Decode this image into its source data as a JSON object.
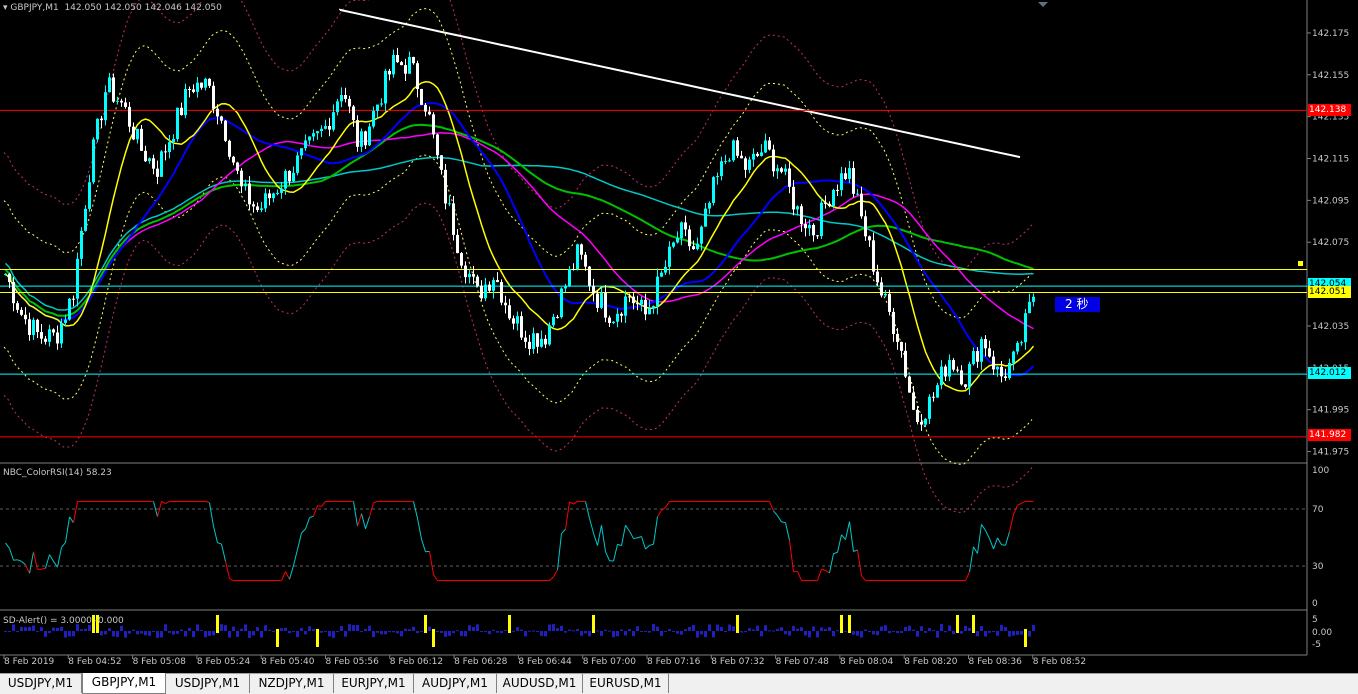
{
  "header": {
    "symbol_label": "GBPJPY,M1",
    "ohlc_text": "142.050 142.050 142.046 142.050",
    "rsi_label": "NBC_ColorRSI(14) 58.23",
    "alert_label": "SD-Alert() = 3.0000 -0.000"
  },
  "timer_label": "2 秒",
  "price_axis": [
    "142.175",
    "142.155",
    "142.135",
    "142.115",
    "142.095",
    "142.075",
    "142.054",
    "142.035",
    "142.015",
    "141.995",
    "141.975"
  ],
  "price_tags": [
    {
      "text": "142.138",
      "bg": "#ff0000",
      "fg": "#ffffff",
      "price": 142.138
    },
    {
      "text": "142.054",
      "bg": "#00ffff",
      "fg": "#000000",
      "price": 142.054
    },
    {
      "text": "142.051",
      "bg": "#ffff00",
      "fg": "#000000",
      "price": 142.051
    },
    {
      "text": "142.012",
      "bg": "#00ffff",
      "fg": "#000000",
      "price": 142.012
    },
    {
      "text": "141.982",
      "bg": "#ff0000",
      "fg": "#ffffff",
      "price": 141.982
    }
  ],
  "rsi_axis": [
    "100",
    "70",
    "30",
    "0"
  ],
  "alert_axis": [
    "5",
    "0.00",
    "-5"
  ],
  "time_axis": [
    "8 Feb 2019",
    "8 Feb 04:52",
    "8 Feb 05:08",
    "8 Feb 05:24",
    "8 Feb 05:40",
    "8 Feb 05:56",
    "8 Feb 06:12",
    "8 Feb 06:28",
    "8 Feb 06:44",
    "8 Feb 07:00",
    "8 Feb 07:16",
    "8 Feb 07:32",
    "8 Feb 07:48",
    "8 Feb 08:04",
    "8 Feb 08:20",
    "8 Feb 08:36",
    "8 Feb 08:52"
  ],
  "tabs": [
    "USDJPY,M1",
    "GBPJPY,M1",
    "USDJPY,M1",
    "NZDJPY,M1",
    "EURJPY,M1",
    "AUDJPY,M1",
    "AUDUSD,M1",
    "EURUSD,M1"
  ],
  "active_tab": 1,
  "colors": {
    "bull": "#00ffff",
    "bear": "#ffffff",
    "background": "#000000",
    "grid": "#404040"
  },
  "chart_data": {
    "type": "candlestick",
    "symbol": "GBPJPY",
    "timeframe": "M1",
    "ylim": [
      141.97,
      142.185
    ],
    "horizontal_levels": [
      142.138,
      142.012,
      141.982,
      142.062,
      142.054,
      142.051
    ],
    "close_path": [
      142.06,
      142.04,
      142.03,
      142.03,
      142.05,
      142.11,
      142.15,
      142.14,
      142.12,
      142.11,
      142.13,
      142.15,
      142.15,
      142.13,
      142.1,
      142.09,
      142.1,
      142.11,
      142.12,
      142.13,
      142.15,
      142.12,
      142.14,
      142.16,
      142.16,
      142.14,
      142.1,
      142.07,
      142.05,
      142.06,
      142.04,
      142.03,
      142.03,
      142.05,
      142.07,
      142.05,
      142.04,
      142.05,
      142.04,
      142.06,
      142.08,
      142.07,
      142.1,
      142.12,
      142.11,
      142.12,
      142.11,
      142.09,
      142.08,
      142.1,
      142.11,
      142.08,
      142.05,
      142.03,
      141.99,
      142.0,
      142.02,
      142.01,
      142.03,
      142.01,
      142.02,
      142.05
    ],
    "rsi": {
      "ylim": [
        0,
        100
      ],
      "levels": [
        70,
        30
      ],
      "last": 58.23
    }
  }
}
